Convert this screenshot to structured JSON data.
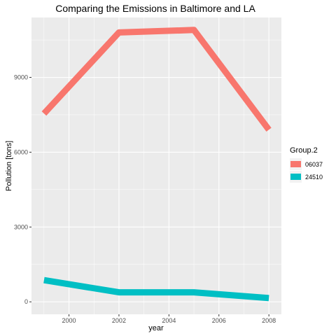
{
  "chart_data": {
    "type": "line",
    "title": "Comparing the Emissions in Baltimore and LA",
    "xlabel": "year",
    "ylabel": "Pollution [tons]",
    "xlim": [
      1998.5,
      2008.5
    ],
    "ylim": [
      -500,
      11400
    ],
    "x_ticks": [
      2000,
      2002,
      2004,
      2006,
      2008
    ],
    "y_ticks": [
      0,
      3000,
      6000,
      9000
    ],
    "grid": true,
    "legend_title": "Group.2",
    "legend_position": "right",
    "x": [
      1999,
      2002,
      2005,
      2008
    ],
    "series": [
      {
        "name": "06037",
        "color": "#F8766D",
        "values": [
          7550,
          10800,
          10900,
          6900
        ]
      },
      {
        "name": "24510",
        "color": "#00BFC4",
        "values": [
          870,
          380,
          380,
          150
        ]
      }
    ]
  }
}
